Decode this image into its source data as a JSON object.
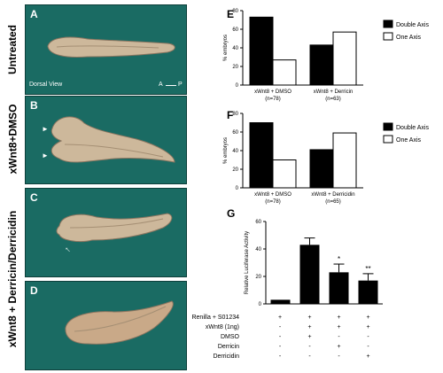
{
  "row_labels": [
    "Untreated",
    "xWnt8+DMSO",
    "xWnt8 + Derricin/Derricidin"
  ],
  "panels": {
    "A": {
      "letter": "A",
      "view_label": "Dorsal View",
      "axis_anterior": "A",
      "axis_posterior": "P"
    },
    "B": {
      "letter": "B"
    },
    "C": {
      "letter": "C"
    },
    "D": {
      "letter": "D"
    }
  },
  "colors": {
    "panel_bg": "#1a6b63",
    "embryo": "#c9b79a",
    "bar_filled": "#000000",
    "bar_open": "#ffffff"
  },
  "chart_data": [
    {
      "letter": "E",
      "type": "bar",
      "ylabel": "% embryos",
      "ylim": [
        0,
        80
      ],
      "yticks": [
        0,
        20,
        40,
        60,
        80
      ],
      "categories": [
        "xWnt8 + DMSO",
        "xWnt8 + Derricin"
      ],
      "category_n": [
        "(n=78)",
        "(n=63)"
      ],
      "series": [
        {
          "name": "Double Axis",
          "values": [
            73,
            43
          ]
        },
        {
          "name": "One Axis",
          "values": [
            27,
            57
          ]
        }
      ]
    },
    {
      "letter": "F",
      "type": "bar",
      "ylabel": "% embryos",
      "ylim": [
        0,
        80
      ],
      "yticks": [
        0,
        20,
        40,
        60,
        80
      ],
      "categories": [
        "xWnt8 + DMSO",
        "xWnt8 + Derricidin"
      ],
      "category_n": [
        "(n=78)",
        "(n=65)"
      ],
      "series": [
        {
          "name": "Double Axis",
          "values": [
            70,
            41
          ]
        },
        {
          "name": "One Axis",
          "values": [
            30,
            59
          ]
        }
      ]
    },
    {
      "letter": "G",
      "type": "bar",
      "ylabel": "Relative Luciferase Activity",
      "ylim": [
        0,
        60
      ],
      "yticks": [
        0,
        20,
        40,
        60
      ],
      "values": [
        3,
        43,
        23,
        17
      ],
      "errors": [
        0,
        5,
        6,
        5
      ],
      "significance": [
        "",
        "",
        "*",
        "**"
      ],
      "treatment_rows": [
        {
          "label": "Renilla + S01234",
          "marks": [
            "+",
            "+",
            "+",
            "+"
          ]
        },
        {
          "label": "xWnt8 (1ng)",
          "marks": [
            "-",
            "+",
            "+",
            "+"
          ]
        },
        {
          "label": "DMSO",
          "marks": [
            "-",
            "+",
            "-",
            "-"
          ]
        },
        {
          "label": "Derricin",
          "marks": [
            "-",
            "-",
            "+",
            "-"
          ]
        },
        {
          "label": "Derricidin",
          "marks": [
            "-",
            "-",
            "-",
            "+"
          ]
        }
      ]
    }
  ]
}
